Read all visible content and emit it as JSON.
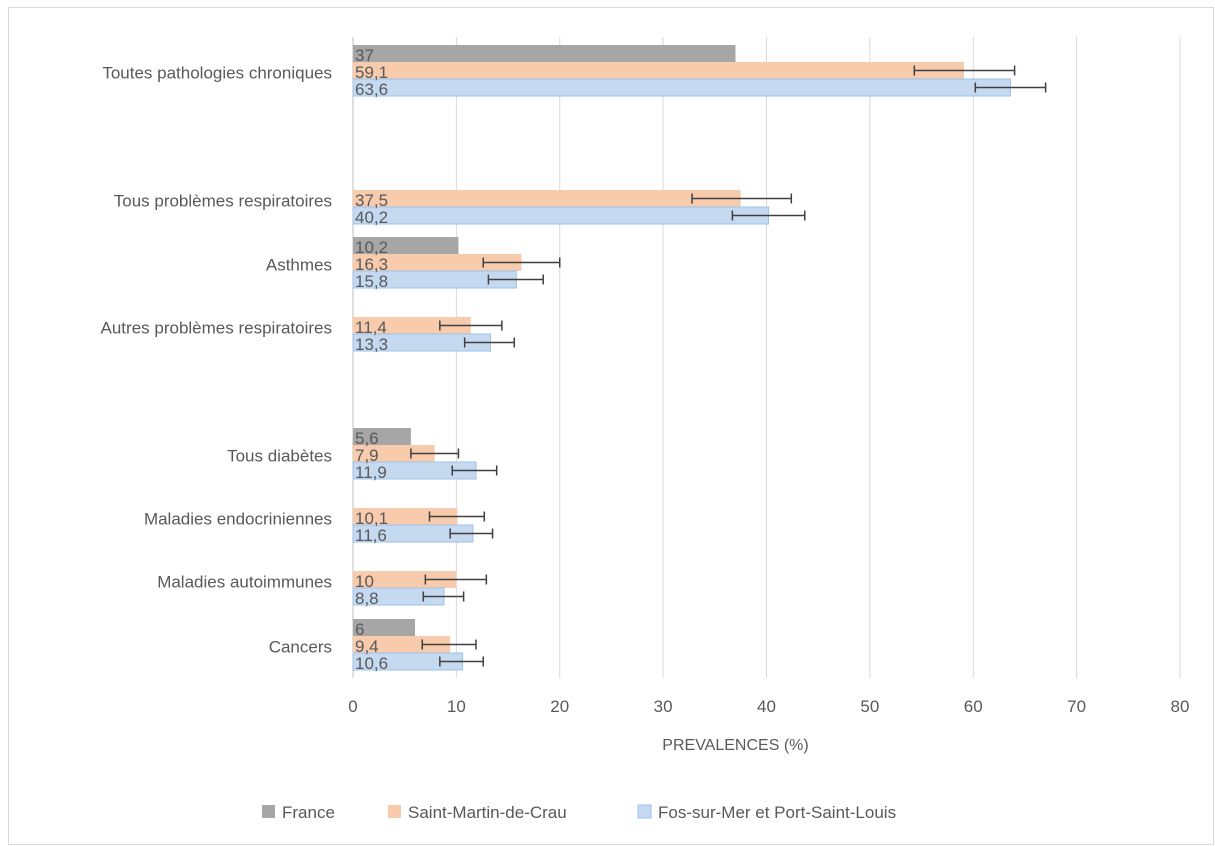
{
  "chart_data": {
    "type": "bar",
    "orientation": "horizontal",
    "xlabel": "PREVALENCES (%)",
    "xlim": [
      0,
      80
    ],
    "xticks": [
      0,
      10,
      20,
      30,
      40,
      50,
      60,
      70,
      80
    ],
    "grid": true,
    "legend_position": "bottom",
    "categories": [
      "Toutes pathologies chroniques",
      "Tous problèmes respiratoires",
      "Asthmes",
      "Autres problèmes respiratoires",
      "Tous diabètes",
      "Maladies endocriniennes",
      "Maladies autoimmunes",
      "Cancers"
    ],
    "series": [
      {
        "name": "France",
        "color": "#a6a6a6",
        "values": [
          37,
          null,
          10.2,
          null,
          5.6,
          null,
          null,
          6
        ],
        "labels": [
          "37",
          "",
          "10,2",
          "",
          "5,6",
          "",
          "",
          "6"
        ]
      },
      {
        "name": "Saint-Martin-de-Crau",
        "color": "#f8cbad",
        "values": [
          59.1,
          37.5,
          16.3,
          11.4,
          7.9,
          10.1,
          10,
          9.4
        ],
        "labels": [
          "59,1",
          "37,5",
          "16,3",
          "11,4",
          "7,9",
          "10,1",
          "10",
          "9,4"
        ],
        "error_low": [
          54.3,
          32.8,
          12.6,
          8.4,
          5.6,
          7.4,
          7.0,
          6.7
        ],
        "error_high": [
          64.0,
          42.4,
          20.0,
          14.4,
          10.2,
          12.7,
          12.9,
          11.9
        ]
      },
      {
        "name": "Fos-sur-Mer et Port-Saint-Louis",
        "color": "#c5d9f1",
        "values": [
          63.6,
          40.2,
          15.8,
          13.3,
          11.9,
          11.6,
          8.8,
          10.6
        ],
        "labels": [
          "63,6",
          "40,2",
          "15,8",
          "13,3",
          "11,9",
          "11,6",
          "8,8",
          "10,6"
        ],
        "error_low": [
          60.2,
          36.7,
          13.1,
          10.8,
          9.6,
          9.4,
          6.8,
          8.4
        ],
        "error_high": [
          67.0,
          43.7,
          18.4,
          15.6,
          13.9,
          13.5,
          10.7,
          12.6
        ]
      }
    ]
  }
}
